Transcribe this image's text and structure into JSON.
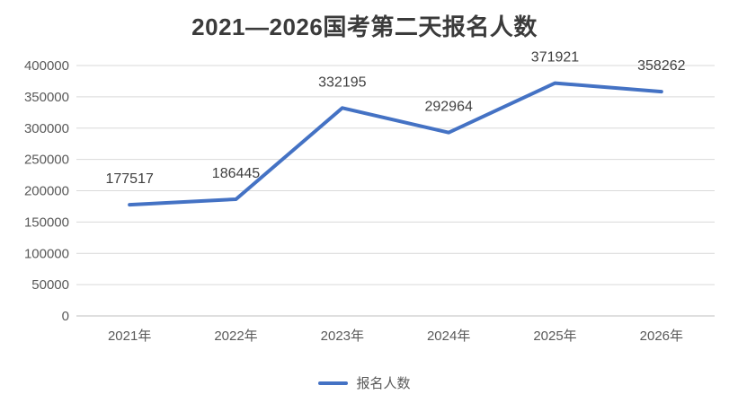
{
  "title": "2021—2026国考第二天报名人数",
  "legend": {
    "label": "报名人数"
  },
  "colors": {
    "series_line": "#4472C4",
    "gridline": "#D9D9D9",
    "axis_line": "#BFBFBF",
    "tick_label": "#595959",
    "data_label": "#3f3f3f",
    "title": "#3b3b3b"
  },
  "chart_data": {
    "type": "line",
    "title": "2021—2026国考第二天报名人数",
    "categories": [
      "2021年",
      "2022年",
      "2023年",
      "2024年",
      "2025年",
      "2026年"
    ],
    "series": [
      {
        "name": "报名人数",
        "values": [
          177517,
          186445,
          332195,
          292964,
          371921,
          358262
        ]
      }
    ],
    "data_labels": [
      "177517",
      "186445",
      "332195",
      "292964",
      "371921",
      "358262"
    ],
    "xlabel": "",
    "ylabel": "",
    "ylim": [
      0,
      400000
    ],
    "ytick_step": 50000,
    "ytick_labels": [
      "0",
      "50000",
      "100000",
      "150000",
      "200000",
      "250000",
      "300000",
      "350000",
      "400000"
    ],
    "grid": true,
    "legend_position": "bottom",
    "markers": false
  }
}
